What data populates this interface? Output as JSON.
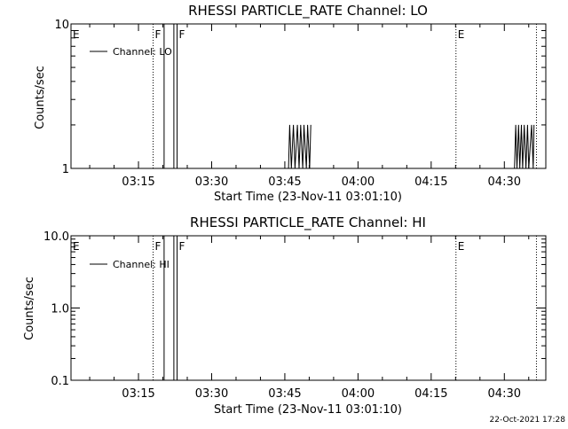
{
  "chart_data": [
    {
      "type": "line",
      "title": "RHESSI PARTICLE_RATE Channel: LO",
      "xlabel": "Start Time (23-Nov-11 03:01:10)",
      "ylabel": "Counts/sec",
      "yscale": "log",
      "ylim": [
        1,
        10
      ],
      "y_ticks": [
        1,
        10
      ],
      "y_tick_labels": [
        "1",
        "10"
      ],
      "xlim": [
        "03:01:10",
        "04:38:30"
      ],
      "x_ticks": [
        "03:15",
        "03:30",
        "03:45",
        "04:00",
        "04:15",
        "04:30"
      ],
      "legend": {
        "entries": [
          "Channel: LO"
        ],
        "position": "top-left"
      },
      "grid": false,
      "events": [
        {
          "label": "E",
          "time": "03:01:10",
          "style": "dotted"
        },
        {
          "label": "F",
          "time": "03:18:00",
          "style": "dotted"
        },
        {
          "label": "F",
          "time": "03:22:55",
          "style": "solid"
        },
        {
          "label": "E",
          "time": "04:20:05",
          "style": "dotted"
        },
        {
          "label": "",
          "time": "04:36:35",
          "style": "dotted"
        }
      ],
      "series": [
        {
          "name": "Channel: LO",
          "x": [
            "03:20:15",
            "03:20:15",
            "03:22:15",
            "03:22:15"
          ],
          "y": [
            1,
            10,
            10,
            1
          ]
        },
        {
          "name": "",
          "x": [
            "03:45:45",
            "03:46:00",
            "03:46:20",
            "03:46:45",
            "03:47:05",
            "03:47:35",
            "03:47:55",
            "03:48:15",
            "03:48:40",
            "03:48:55",
            "03:49:25",
            "03:49:40",
            "03:50:05",
            "03:50:20"
          ],
          "y": [
            1,
            2,
            1,
            2,
            1,
            2,
            1,
            2,
            1,
            2,
            1,
            2,
            1,
            2
          ]
        },
        {
          "name": "",
          "x": [
            "04:32:05",
            "04:32:20",
            "04:32:35",
            "04:32:55",
            "04:33:10",
            "04:33:30",
            "04:33:45",
            "04:34:05",
            "04:34:25",
            "04:34:45",
            "04:35:00",
            "04:35:35",
            "04:35:55",
            "04:36:05"
          ],
          "y": [
            1,
            2,
            1,
            2,
            1,
            2,
            1,
            2,
            1,
            2,
            1,
            2,
            1,
            2
          ]
        }
      ]
    },
    {
      "type": "line",
      "title": "RHESSI PARTICLE_RATE Channel: HI",
      "xlabel": "Start Time (23-Nov-11 03:01:10)",
      "ylabel": "Counts/sec",
      "yscale": "log",
      "ylim": [
        0.1,
        10
      ],
      "y_ticks": [
        0.1,
        1,
        10
      ],
      "y_tick_labels": [
        "0.1",
        "1.0",
        "10.0"
      ],
      "xlim": [
        "03:01:10",
        "04:38:30"
      ],
      "x_ticks": [
        "03:15",
        "03:30",
        "03:45",
        "04:00",
        "04:15",
        "04:30"
      ],
      "legend": {
        "entries": [
          "Channel: HI"
        ],
        "position": "top-left"
      },
      "grid": false,
      "events": [
        {
          "label": "E",
          "time": "03:01:10",
          "style": "dotted"
        },
        {
          "label": "F",
          "time": "03:18:00",
          "style": "dotted"
        },
        {
          "label": "F",
          "time": "03:22:55",
          "style": "solid"
        },
        {
          "label": "E",
          "time": "04:20:05",
          "style": "dotted"
        },
        {
          "label": "",
          "time": "04:36:35",
          "style": "dotted"
        }
      ],
      "series": [
        {
          "name": "Channel: HI",
          "x": [
            "03:20:15",
            "03:20:15",
            "03:22:15",
            "03:22:15"
          ],
          "y": [
            0.1,
            10,
            10,
            0.1
          ]
        }
      ]
    }
  ],
  "footer": {
    "timestamp": "22-Oct-2021 17:28"
  }
}
